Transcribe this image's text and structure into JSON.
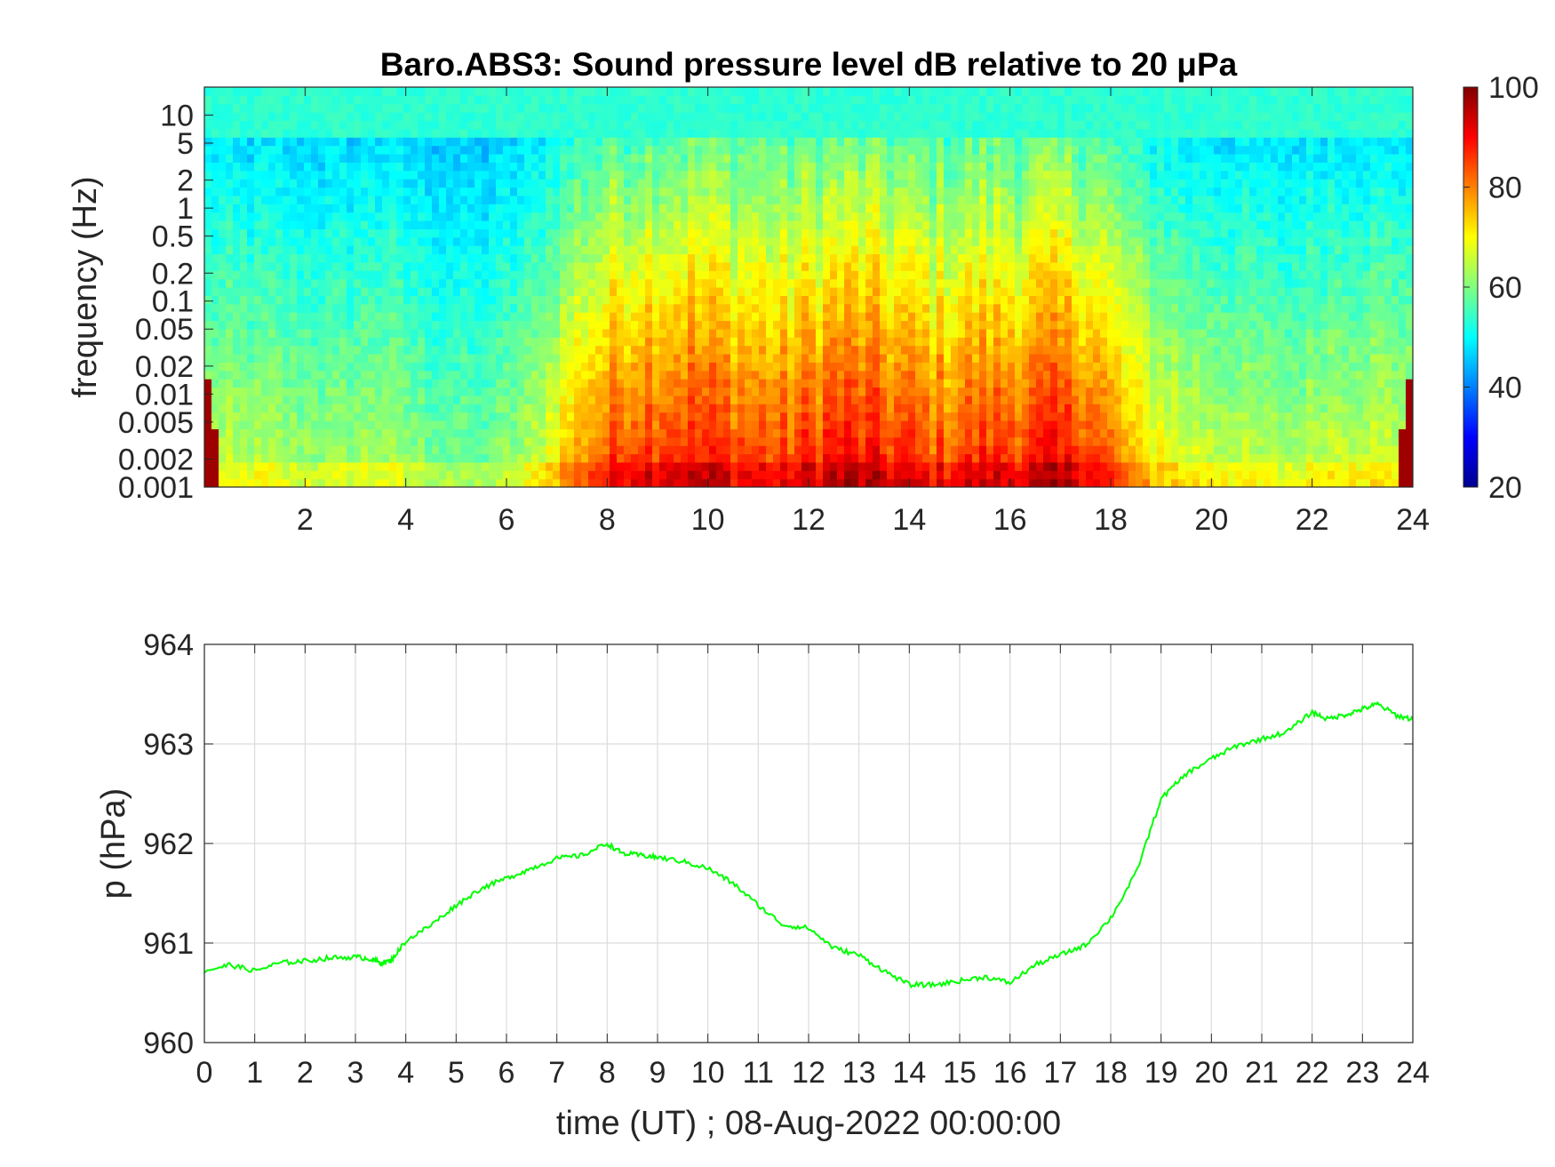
{
  "chart_data": [
    {
      "type": "heatmap",
      "title": "Baro.ABS3: Sound pressure level dB relative to 20 μPa",
      "ylabel": "frequency (Hz)",
      "xlabel": "",
      "y_scale": "log",
      "xlim": [
        0,
        24
      ],
      "ylim": [
        0.001,
        20
      ],
      "x_ticks": [
        2,
        4,
        6,
        8,
        10,
        12,
        14,
        16,
        18,
        20,
        22,
        24
      ],
      "y_ticks": [
        0.001,
        0.002,
        0.005,
        0.01,
        0.02,
        0.05,
        0.1,
        0.2,
        0.5,
        1,
        2,
        5,
        10
      ],
      "y_tick_labels": [
        "0.001",
        "0.002",
        "0.005",
        "0.01",
        "0.02",
        "0.05",
        "0.1",
        "0.2",
        "0.5",
        "1",
        "2",
        "5",
        "10"
      ],
      "colorbar": {
        "colormap": "jet",
        "range": [
          20,
          100
        ],
        "ticks": [
          20,
          40,
          60,
          80,
          100
        ]
      },
      "profile_hours": [
        0.5,
        1.5,
        2.5,
        3.5,
        4.5,
        5.5,
        6.5,
        7.5,
        8.5,
        9.5,
        10.5,
        11.5,
        12.5,
        13.5,
        14.5,
        15.5,
        16.5,
        17.5,
        18.5,
        19.5,
        20.5,
        21.5,
        22.5,
        23.5
      ],
      "activity_level_0_to_1": [
        0.35,
        0.33,
        0.3,
        0.35,
        0.25,
        0.22,
        0.35,
        0.7,
        0.9,
        0.92,
        0.88,
        0.82,
        0.95,
        0.9,
        0.82,
        0.88,
        0.9,
        0.92,
        0.58,
        0.42,
        0.38,
        0.32,
        0.42,
        0.4
      ]
    },
    {
      "type": "line",
      "title": "",
      "xlabel": "time (UT) ; 08-Aug-2022 00:00:00",
      "ylabel": "p (hPa)",
      "xlim": [
        0,
        24
      ],
      "ylim": [
        960,
        964
      ],
      "x_ticks": [
        0,
        1,
        2,
        3,
        4,
        5,
        6,
        7,
        8,
        9,
        10,
        11,
        12,
        13,
        14,
        15,
        16,
        17,
        18,
        19,
        20,
        21,
        22,
        23,
        24
      ],
      "y_ticks": [
        960,
        961,
        962,
        963,
        964
      ],
      "grid": true,
      "series": [
        {
          "color": "#00ff00",
          "x": [
            0,
            0.5,
            1,
            1.5,
            2,
            2.5,
            3,
            3.3,
            3.5,
            3.7,
            4,
            4.5,
            5,
            5.5,
            6,
            6.5,
            7,
            7.5,
            8,
            8.3,
            8.7,
            9,
            9.5,
            10,
            10.5,
            11,
            11.5,
            12,
            12.5,
            13,
            13.5,
            14,
            14.5,
            15,
            15.5,
            16,
            16.5,
            17,
            17.5,
            18,
            18.5,
            19,
            19.5,
            20,
            20.5,
            21,
            21.5,
            22,
            22.3,
            22.7,
            23,
            23.3,
            23.7,
            24
          ],
          "y": [
            960.72,
            960.78,
            960.72,
            960.8,
            960.82,
            960.85,
            960.86,
            960.84,
            960.8,
            960.82,
            961.02,
            961.18,
            961.38,
            961.55,
            961.65,
            961.75,
            961.85,
            961.88,
            962.0,
            961.9,
            961.88,
            961.86,
            961.82,
            961.75,
            961.6,
            961.38,
            961.18,
            961.15,
            960.95,
            960.88,
            960.72,
            960.58,
            960.58,
            960.62,
            960.66,
            960.6,
            960.78,
            960.88,
            960.98,
            961.25,
            961.7,
            962.45,
            962.7,
            962.85,
            962.98,
            963.05,
            963.12,
            963.32,
            963.25,
            963.3,
            963.35,
            963.4,
            963.28,
            963.25
          ]
        }
      ]
    }
  ]
}
